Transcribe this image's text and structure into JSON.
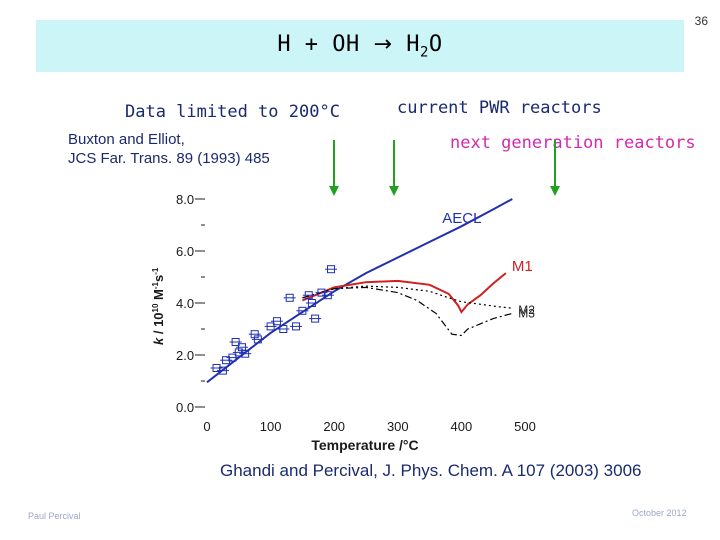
{
  "slide_number": "36",
  "title": {
    "prefix": "H + OH",
    "arrow": "→",
    "product_main": "H",
    "product_sub": "2",
    "product_end": "O"
  },
  "labels": {
    "data_limited": "Data limited to 200°C",
    "current_pwr": "current PWR reactors",
    "next_gen": "next generation reactors"
  },
  "references": {
    "buxton_line1": "Buxton and Elliot,",
    "buxton_line2": "JCS Far. Trans. 89 (1993) 485",
    "ghandi": "Ghandi and Percival, J. Phys. Chem. A 107 (2003) 3006"
  },
  "footer": {
    "author": "Paul Percival",
    "date": "October 2012"
  },
  "colors": {
    "title_bg": "#ccf5f8",
    "text_navy": "#1a2a6e",
    "next_gen_magenta": "#d02ab0",
    "arrow_green": "#22a022",
    "aecl_blue": "#2030b0",
    "m1_red": "#d02020",
    "m_black": "#000000"
  },
  "chart_data": {
    "type": "line",
    "xlabel": "Temperature /°C",
    "ylabel": "k / 10¹⁰ M⁻¹s⁻¹",
    "ylabel_parts": {
      "a": "k",
      "b": " / 10",
      "c": "10",
      "d": " M",
      "e": "-1",
      "f": "s",
      "g": "-1"
    },
    "xlim": [
      0,
      500
    ],
    "ylim": [
      0,
      8
    ],
    "xticks": [
      "0",
      "100",
      "200",
      "300",
      "400",
      "500"
    ],
    "yticks": [
      "0.0",
      "2.0",
      "4.0",
      "6.0",
      "8.0"
    ],
    "series": [
      {
        "name": "AECL",
        "color": "#2030b0",
        "style": "solid",
        "x": [
          0,
          50,
          100,
          150,
          200,
          250,
          300,
          350,
          400,
          450,
          480
        ],
        "y": [
          0.95,
          1.9,
          2.85,
          3.65,
          4.45,
          5.15,
          5.75,
          6.35,
          6.95,
          7.6,
          8.0
        ]
      },
      {
        "name": "M1",
        "color": "#d02020",
        "style": "solid",
        "x": [
          150,
          200,
          250,
          300,
          350,
          380,
          395,
          400,
          410,
          430,
          450,
          470
        ],
        "y": [
          4.1,
          4.6,
          4.8,
          4.85,
          4.7,
          4.35,
          3.9,
          3.65,
          3.95,
          4.3,
          4.75,
          5.15
        ]
      },
      {
        "name": "M2",
        "color": "#000000",
        "style": "dotted",
        "x": [
          150,
          200,
          250,
          300,
          350,
          380,
          400,
          430,
          460,
          480
        ],
        "y": [
          4.2,
          4.55,
          4.65,
          4.6,
          4.45,
          4.2,
          4.05,
          3.95,
          3.85,
          3.8
        ]
      },
      {
        "name": "M3",
        "color": "#000000",
        "style": "dashdot",
        "x": [
          150,
          200,
          250,
          300,
          330,
          360,
          385,
          400,
          410,
          430,
          450,
          480
        ],
        "y": [
          4.2,
          4.55,
          4.6,
          4.4,
          4.1,
          3.6,
          2.8,
          2.75,
          3.0,
          3.2,
          3.4,
          3.6
        ]
      }
    ],
    "points": {
      "name": "Buxton and Elliot",
      "x": [
        15,
        25,
        30,
        40,
        45,
        50,
        55,
        60,
        75,
        80,
        100,
        110,
        120,
        130,
        140,
        150,
        160,
        165,
        170,
        180,
        190,
        195
      ],
      "y": [
        1.5,
        1.4,
        1.8,
        1.9,
        2.5,
        2.1,
        2.3,
        2.05,
        2.8,
        2.6,
        3.1,
        3.3,
        3.0,
        4.2,
        3.1,
        3.7,
        4.3,
        4.0,
        3.4,
        4.4,
        4.3,
        5.3
      ]
    }
  },
  "arrows": {
    "marker_temperatures": [
      200,
      290,
      540
    ]
  }
}
